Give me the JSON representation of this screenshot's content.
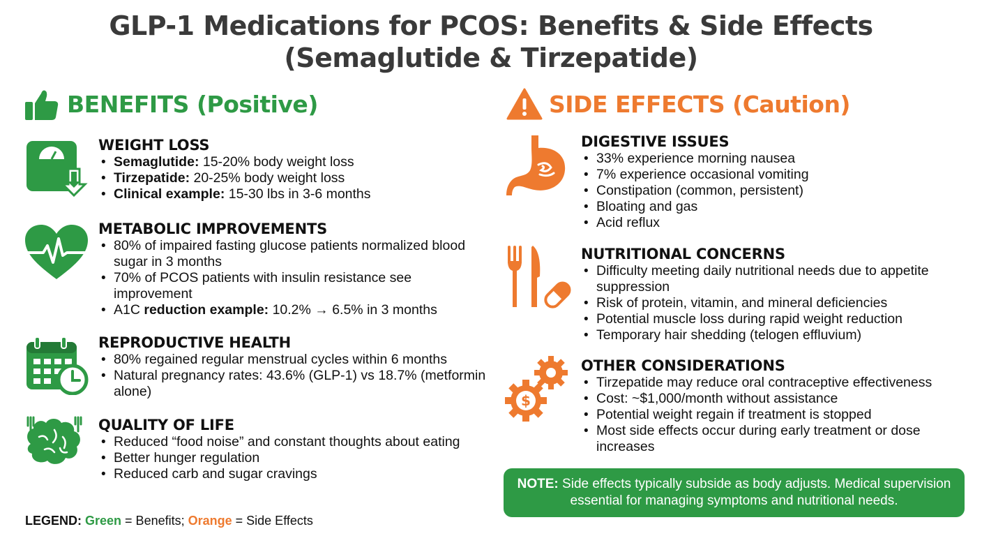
{
  "title": {
    "line1": "GLP-1 Medications for PCOS: Benefits & Side Effects",
    "line2": "(Semaglutide & Tirzepatide)"
  },
  "colors": {
    "green": "#2e9a45",
    "orange": "#ee7a2f",
    "title": "#3a3a3a"
  },
  "benefits": {
    "heading": "BENEFITS (Positive)",
    "icon": "thumbs-up-icon",
    "sections": [
      {
        "title": "WEIGHT LOSS",
        "icon": "scale-down-arrow-icon",
        "items": [
          {
            "bold": "Semaglutide:",
            "text": " 15-20% body weight loss"
          },
          {
            "bold": "Tirzepatide:",
            "text": " 20-25% body weight loss"
          },
          {
            "bold": "Clinical example:",
            "text": " 15-30 lbs in 3-6 months"
          }
        ]
      },
      {
        "title": "METABOLIC IMPROVEMENTS",
        "icon": "heart-pulse-icon",
        "items": [
          {
            "prefix": "",
            "bold": "",
            "text": "80% of impaired fasting glucose patients normalized blood sugar in 3 months"
          },
          {
            "prefix": "",
            "bold": "",
            "text": "70% of PCOS patients with insulin resistance see improvement"
          },
          {
            "prefix": "A1C ",
            "bold": "reduction example:",
            "text": " 10.2% → 6.5% in 3 months"
          }
        ]
      },
      {
        "title": "REPRODUCTIVE HEALTH",
        "icon": "calendar-clock-icon",
        "items": [
          {
            "text": "80% regained regular menstrual cycles within 6 months"
          },
          {
            "text": "Natural pregnancy rates: 43.6% (GLP-1) vs 18.7% (metformin alone)"
          }
        ]
      },
      {
        "title": "QUALITY OF LIFE",
        "icon": "brain-food-icon",
        "items": [
          {
            "text": "Reduced “food noise” and constant thoughts about eating"
          },
          {
            "text": "Better hunger regulation"
          },
          {
            "text": "Reduced carb and sugar cravings"
          }
        ]
      }
    ]
  },
  "side_effects": {
    "heading": "SIDE EFFECTS (Caution)",
    "icon": "warning-icon",
    "sections": [
      {
        "title": "DIGESTIVE ISSUES",
        "icon": "stomach-icon",
        "items": [
          {
            "text": "33% experience morning nausea"
          },
          {
            "text": "7% experience occasional vomiting"
          },
          {
            "text": "Constipation (common, persistent)"
          },
          {
            "text": "Bloating and gas"
          },
          {
            "text": "Acid reflux"
          }
        ]
      },
      {
        "title": "NUTRITIONAL CONCERNS",
        "icon": "fork-knife-pill-icon",
        "items": [
          {
            "text": "Difficulty meeting daily nutritional needs due to appetite suppression"
          },
          {
            "text": "Risk of protein, vitamin, and mineral deficiencies"
          },
          {
            "text": "Potential muscle loss during rapid weight reduction"
          },
          {
            "text": "Temporary hair shedding (telogen effluvium)"
          }
        ]
      },
      {
        "title": "OTHER CONSIDERATIONS",
        "icon": "gears-dollar-icon",
        "items": [
          {
            "text": "Tirzepatide may reduce oral contraceptive effectiveness"
          },
          {
            "text": "Cost: ~$1,000/month without assistance"
          },
          {
            "text": "Potential weight regain if treatment is stopped"
          },
          {
            "text": "Most side effects occur during early treatment or dose increases"
          }
        ]
      }
    ]
  },
  "note": {
    "label": "NOTE:",
    "text": " Side effects typically subside as body adjusts. Medical supervision essential for managing symptoms and nutritional needs."
  },
  "legend": {
    "label": "LEGEND:",
    "green_word": "Green",
    "green_text": " = Benefits; ",
    "orange_word": "Orange",
    "orange_text": " = Side Effects"
  }
}
